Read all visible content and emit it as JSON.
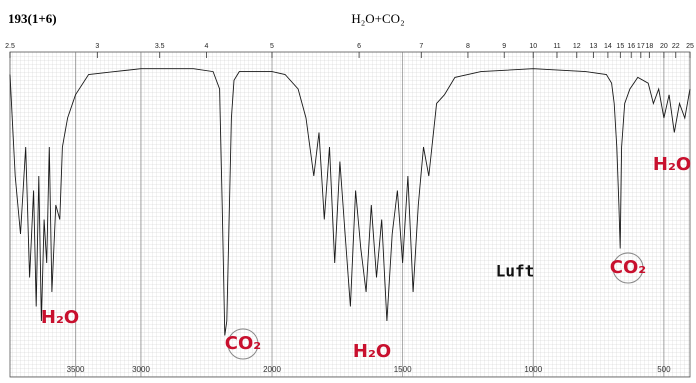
{
  "chart_data": {
    "type": "line",
    "title": "H₂O+CO₂",
    "label": "193(1+6)",
    "xlim": [
      4000,
      400
    ],
    "ylim": [
      0,
      100
    ],
    "xticks": [
      3500,
      3000,
      2000,
      1500,
      1000,
      500
    ],
    "x2ticks": [
      2.5,
      3,
      3.5,
      4,
      5,
      6,
      7,
      8,
      9,
      10,
      11,
      12,
      13,
      14,
      15,
      16,
      17,
      18,
      20,
      22,
      25
    ],
    "series": [
      {
        "color": "#1a1a1a",
        "x": [
          4000,
          3960,
          3920,
          3880,
          3850,
          3820,
          3800,
          3780,
          3760,
          3740,
          3720,
          3700,
          3680,
          3650,
          3620,
          3600,
          3560,
          3500,
          3400,
          3200,
          3000,
          2800,
          2600,
          2450,
          2400,
          2380,
          2360,
          2345,
          2330,
          2310,
          2290,
          2250,
          2100,
          2000,
          1950,
          1900,
          1870,
          1840,
          1820,
          1800,
          1780,
          1760,
          1740,
          1720,
          1700,
          1680,
          1660,
          1640,
          1620,
          1600,
          1580,
          1560,
          1540,
          1520,
          1500,
          1480,
          1460,
          1440,
          1420,
          1400,
          1370,
          1340,
          1300,
          1200,
          1000,
          800,
          720,
          700,
          690,
          680,
          672,
          667,
          662,
          650,
          630,
          600,
          560,
          540,
          520,
          500,
          480,
          460,
          440,
          420,
          400
        ],
        "values": [
          95,
          60,
          40,
          70,
          25,
          55,
          15,
          60,
          10,
          45,
          30,
          70,
          20,
          50,
          45,
          70,
          80,
          88,
          95,
          96,
          97,
          97,
          97,
          96,
          90,
          50,
          5,
          10,
          40,
          80,
          93,
          96,
          96,
          96,
          95,
          90,
          80,
          60,
          75,
          45,
          70,
          30,
          65,
          40,
          15,
          55,
          35,
          20,
          50,
          25,
          45,
          10,
          40,
          55,
          30,
          60,
          20,
          50,
          70,
          60,
          85,
          88,
          94,
          96,
          97,
          96,
          95,
          92,
          85,
          70,
          50,
          35,
          70,
          85,
          90,
          94,
          92,
          85,
          90,
          80,
          88,
          75,
          85,
          80,
          90
        ]
      }
    ],
    "annotations": [
      "H₂O",
      "CO₂",
      "H₂O",
      "Luft",
      "CO₂",
      "H₂O"
    ]
  }
}
